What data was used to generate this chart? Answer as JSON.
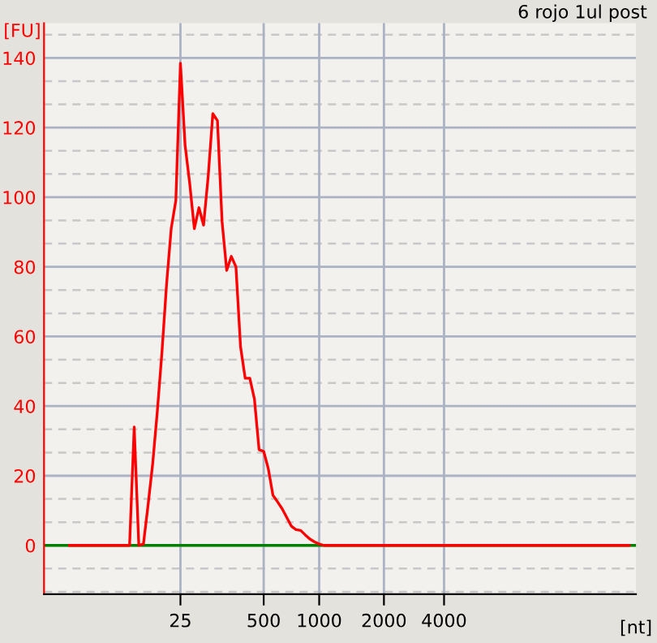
{
  "chart_data": {
    "type": "line",
    "title": "6 rojo 1ul post",
    "xlabel": "[nt]",
    "ylabel": "[FU]",
    "categories": [
      null,
      null,
      null,
      null,
      null,
      null,
      null,
      null,
      null,
      null,
      null,
      null,
      null,
      null,
      null,
      null,
      null,
      null,
      null,
      null,
      null,
      null,
      null,
      null,
      "25",
      null,
      null,
      null,
      null,
      null,
      null,
      null,
      null,
      null,
      null,
      null,
      null,
      null,
      null,
      null,
      null,
      null,
      "500",
      null,
      null,
      null,
      null,
      null,
      null,
      null,
      null,
      null,
      null,
      null,
      "1000",
      null,
      null,
      null,
      null,
      null,
      null,
      null,
      null,
      null,
      null,
      null,
      null,
      null,
      "2000",
      null,
      null,
      null,
      null,
      null,
      null,
      null,
      null,
      null,
      null,
      null,
      null,
      "4000",
      null,
      null,
      null,
      null,
      null,
      null,
      null,
      null,
      null,
      null,
      null,
      null,
      null,
      null,
      null,
      null,
      null,
      null,
      null,
      null,
      null,
      null,
      null,
      null,
      null,
      null,
      null,
      null,
      null,
      null,
      null,
      null,
      null,
      null,
      null,
      null,
      null,
      null,
      null,
      null
    ],
    "series": [
      {
        "color": "#ff0000",
        "values": [
          0,
          0,
          0,
          0,
          0,
          0,
          0,
          0,
          0,
          0,
          0,
          0,
          0,
          0,
          34,
          0,
          0.4,
          11.6,
          23.5,
          38.5,
          55.5,
          75,
          91,
          99,
          138.5,
          115,
          104,
          91,
          97,
          92,
          106,
          124,
          122,
          93,
          79,
          83,
          80,
          57,
          48,
          48,
          42,
          27.5,
          27,
          22,
          14.4,
          12.5,
          10.5,
          8,
          5.5,
          4.5,
          4.3,
          3,
          1.8,
          1,
          0.4,
          0,
          0,
          0,
          0,
          0,
          0,
          0,
          0,
          0,
          0,
          0,
          0,
          0,
          0,
          0,
          0,
          0,
          0,
          0,
          0,
          0,
          0,
          0,
          0,
          0,
          0,
          0,
          0,
          0,
          0,
          0,
          0,
          0,
          0,
          0,
          0,
          0,
          0,
          0,
          0,
          0,
          0,
          0,
          0,
          0,
          0,
          0,
          0,
          0,
          0,
          0,
          0,
          0,
          0,
          0,
          0,
          0,
          0,
          0,
          0,
          0,
          0,
          0,
          0,
          0,
          0,
          0
        ]
      }
    ],
    "ylim": [
      -14,
      150
    ],
    "yticks": [
      0,
      20,
      40,
      60,
      80,
      100,
      120,
      140
    ],
    "ref_lines": [
      {
        "axis": "y",
        "value": 0,
        "color": "#008000",
        "line_style": "solid"
      }
    ],
    "grid": true,
    "marker": "none",
    "line_style": "solid"
  }
}
